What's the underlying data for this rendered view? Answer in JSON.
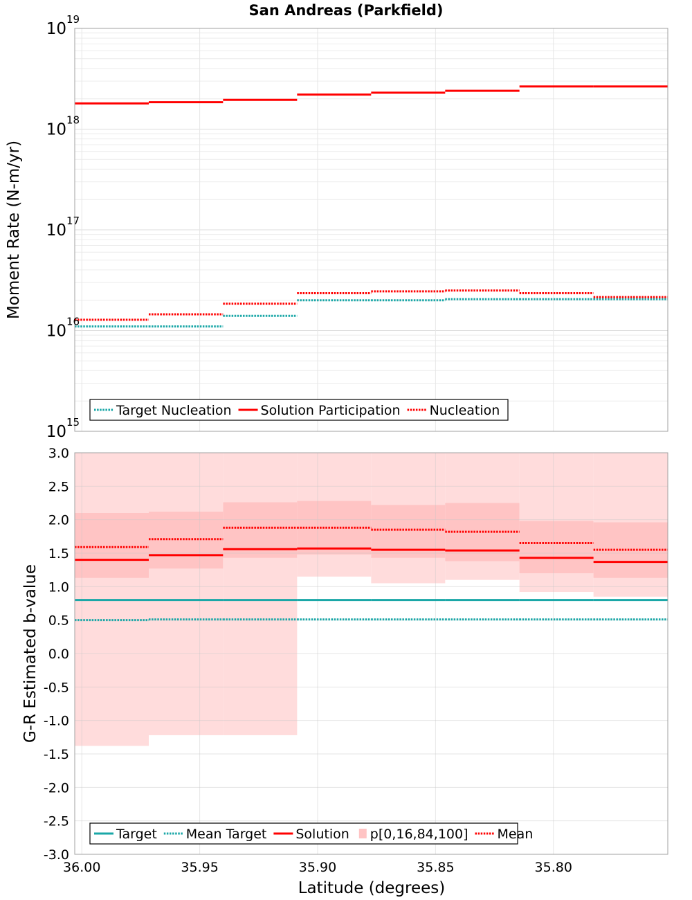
{
  "title": "San Andreas (Parkfield)",
  "colors": {
    "target": "#1aa7a7",
    "solution": "#ff0000",
    "band_outer": "#ffdcdc",
    "band_inner": "#ffc4c4",
    "grid": "#e6e6e6",
    "frame": "#a0a0a0"
  },
  "chart_data": [
    {
      "type": "line",
      "step": true,
      "ylog": true,
      "ylabel": "Moment Rate (N-m/yr)",
      "xlim": [
        36.003,
        35.7515
      ],
      "ylim": [
        1000000000000000.0,
        1e+19
      ],
      "x_edges": [
        36.003,
        35.9716,
        35.9401,
        35.9087,
        35.8773,
        35.8459,
        35.8144,
        35.783,
        35.7515
      ],
      "yticks": [
        {
          "base": "10",
          "exp": "15",
          "value": 1000000000000000.0
        },
        {
          "base": "10",
          "exp": "16",
          "value": 1e+16
        },
        {
          "base": "10",
          "exp": "17",
          "value": 1e+17
        },
        {
          "base": "10",
          "exp": "18",
          "value": 1e+18
        },
        {
          "base": "10",
          "exp": "19",
          "value": 1e+19
        }
      ],
      "series": [
        {
          "name": "Target Nucleation",
          "style": "dotted",
          "color": "#1aa7a7",
          "values": [
            1.1e+16,
            1.1e+16,
            1.4e+16,
            2e+16,
            2e+16,
            2.05e+16,
            2.05e+16,
            2.05e+16
          ]
        },
        {
          "name": "Solution Participation",
          "style": "solid",
          "color": "#ff0000",
          "values": [
            1.8e+18,
            1.85e+18,
            1.95e+18,
            2.2e+18,
            2.3e+18,
            2.4e+18,
            2.65e+18,
            2.65e+18
          ]
        },
        {
          "name": "Nucleation",
          "style": "dotted",
          "color": "#ff0000",
          "values": [
            1.28e+16,
            1.45e+16,
            1.85e+16,
            2.35e+16,
            2.45e+16,
            2.5e+16,
            2.35e+16,
            2.15e+16
          ]
        }
      ],
      "legend": [
        "Target Nucleation",
        "Solution Participation",
        "Nucleation"
      ],
      "legend_position": "bottom-left",
      "grid": true
    },
    {
      "type": "line",
      "step": true,
      "ylabel": "G-R Estimated b-value",
      "xlabel": "Latitude (degrees)",
      "xlim": [
        36.003,
        35.7515
      ],
      "ylim": [
        -3.0,
        3.0
      ],
      "x_edges": [
        36.003,
        35.9716,
        35.9401,
        35.9087,
        35.8773,
        35.8459,
        35.8144,
        35.783,
        35.7515
      ],
      "xticks": [
        "36.00",
        "35.95",
        "35.90",
        "35.85",
        "35.80"
      ],
      "xtick_values": [
        36.0,
        35.95,
        35.9,
        35.85,
        35.8
      ],
      "yticks": [
        "3.0",
        "2.5",
        "2.0",
        "1.5",
        "1.0",
        "0.5",
        "0.0",
        "-0.5",
        "-1.0",
        "-1.5",
        "-2.0",
        "-2.5",
        "-3.0"
      ],
      "ytick_values": [
        3.0,
        2.5,
        2.0,
        1.5,
        1.0,
        0.5,
        0.0,
        -0.5,
        -1.0,
        -1.5,
        -2.0,
        -2.5,
        -3.0
      ],
      "bands": {
        "name": "p[0,16,84,100]",
        "p0": [
          -1.38,
          -1.22,
          -1.22,
          1.15,
          1.05,
          1.1,
          0.92,
          0.85
        ],
        "p16": [
          1.13,
          1.27,
          1.43,
          1.48,
          1.43,
          1.38,
          1.2,
          1.13
        ],
        "p84": [
          2.1,
          2.12,
          2.26,
          2.28,
          2.22,
          2.25,
          1.98,
          1.96
        ],
        "p100": [
          3.0,
          3.0,
          3.0,
          3.0,
          3.0,
          3.0,
          3.0,
          3.0
        ]
      },
      "series": [
        {
          "name": "Target",
          "style": "solid",
          "color": "#1aa7a7",
          "values": [
            0.8,
            0.8,
            0.8,
            0.8,
            0.8,
            0.8,
            0.8,
            0.8
          ]
        },
        {
          "name": "Mean Target",
          "style": "dotted",
          "color": "#1aa7a7",
          "values": [
            0.5,
            0.51,
            0.51,
            0.51,
            0.51,
            0.51,
            0.51,
            0.51
          ]
        },
        {
          "name": "Solution",
          "style": "solid",
          "color": "#ff0000",
          "values": [
            1.4,
            1.47,
            1.56,
            1.57,
            1.55,
            1.54,
            1.43,
            1.37
          ]
        },
        {
          "name": "Mean",
          "style": "dotted",
          "color": "#ff0000",
          "values": [
            1.59,
            1.71,
            1.88,
            1.88,
            1.85,
            1.82,
            1.65,
            1.55
          ]
        }
      ],
      "legend": [
        "Target",
        "Mean Target",
        "Solution",
        "p[0,16,84,100]",
        "Mean"
      ],
      "legend_position": "bottom-left",
      "grid": true
    }
  ]
}
